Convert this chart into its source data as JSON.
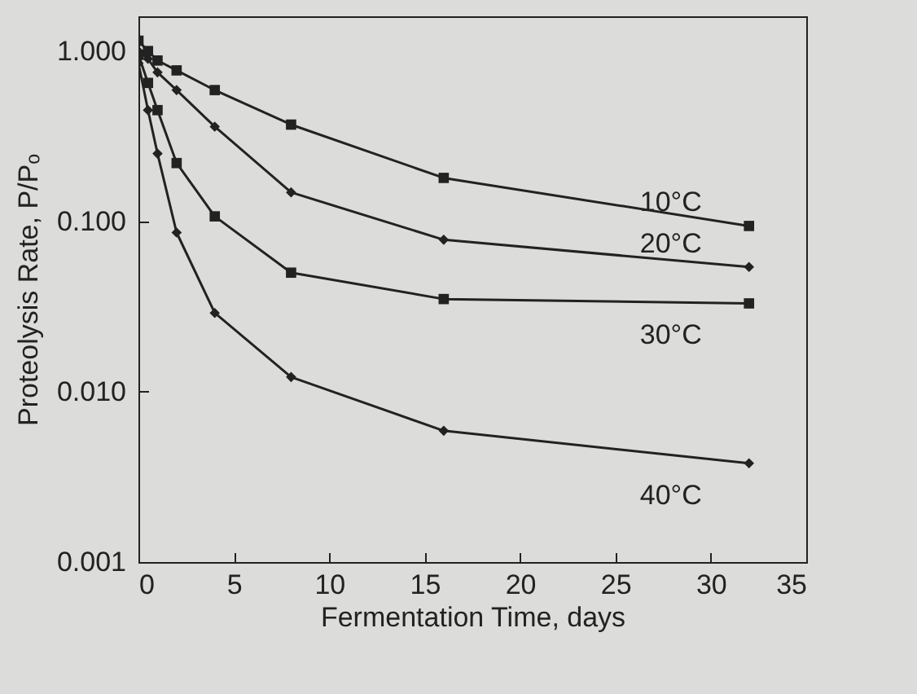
{
  "chart_data": {
    "type": "line",
    "xlabel": "Fermentation Time, days",
    "ylabel": "Proteolysis Rate, P/Pₒ",
    "log": "y",
    "grid": false,
    "xlim": [
      0,
      35
    ],
    "xticks": [
      0,
      5,
      10,
      15,
      20,
      25,
      30,
      35
    ],
    "ylim": [
      0.001,
      1.6
    ],
    "yticks": [
      {
        "value": 0.001,
        "label": "0.001"
      },
      {
        "value": 0.01,
        "label": "0.010"
      },
      {
        "value": 0.1,
        "label": "0.100"
      },
      {
        "value": 1,
        "label": "1.000"
      }
    ],
    "x": [
      0,
      0.5,
      1,
      2,
      4,
      8,
      16,
      32
    ],
    "series": [
      {
        "name": "10°C",
        "color": "#222222",
        "marker": "square",
        "values": [
          1.15,
          1.0,
          0.88,
          0.77,
          0.59,
          0.37,
          0.18,
          0.094
        ]
      },
      {
        "name": "20°C",
        "color": "#222222",
        "marker": "diamond",
        "values": [
          1.0,
          0.9,
          0.75,
          0.59,
          0.36,
          0.148,
          0.078,
          0.054
        ]
      },
      {
        "name": "30°C",
        "color": "#222222",
        "marker": "square",
        "values": [
          0.95,
          0.65,
          0.45,
          0.22,
          0.107,
          0.05,
          0.035,
          0.033
        ]
      },
      {
        "name": "40°C",
        "color": "#222222",
        "marker": "diamond",
        "values": [
          0.85,
          0.45,
          0.25,
          0.086,
          0.029,
          0.0122,
          0.0059,
          0.0038
        ]
      }
    ]
  }
}
